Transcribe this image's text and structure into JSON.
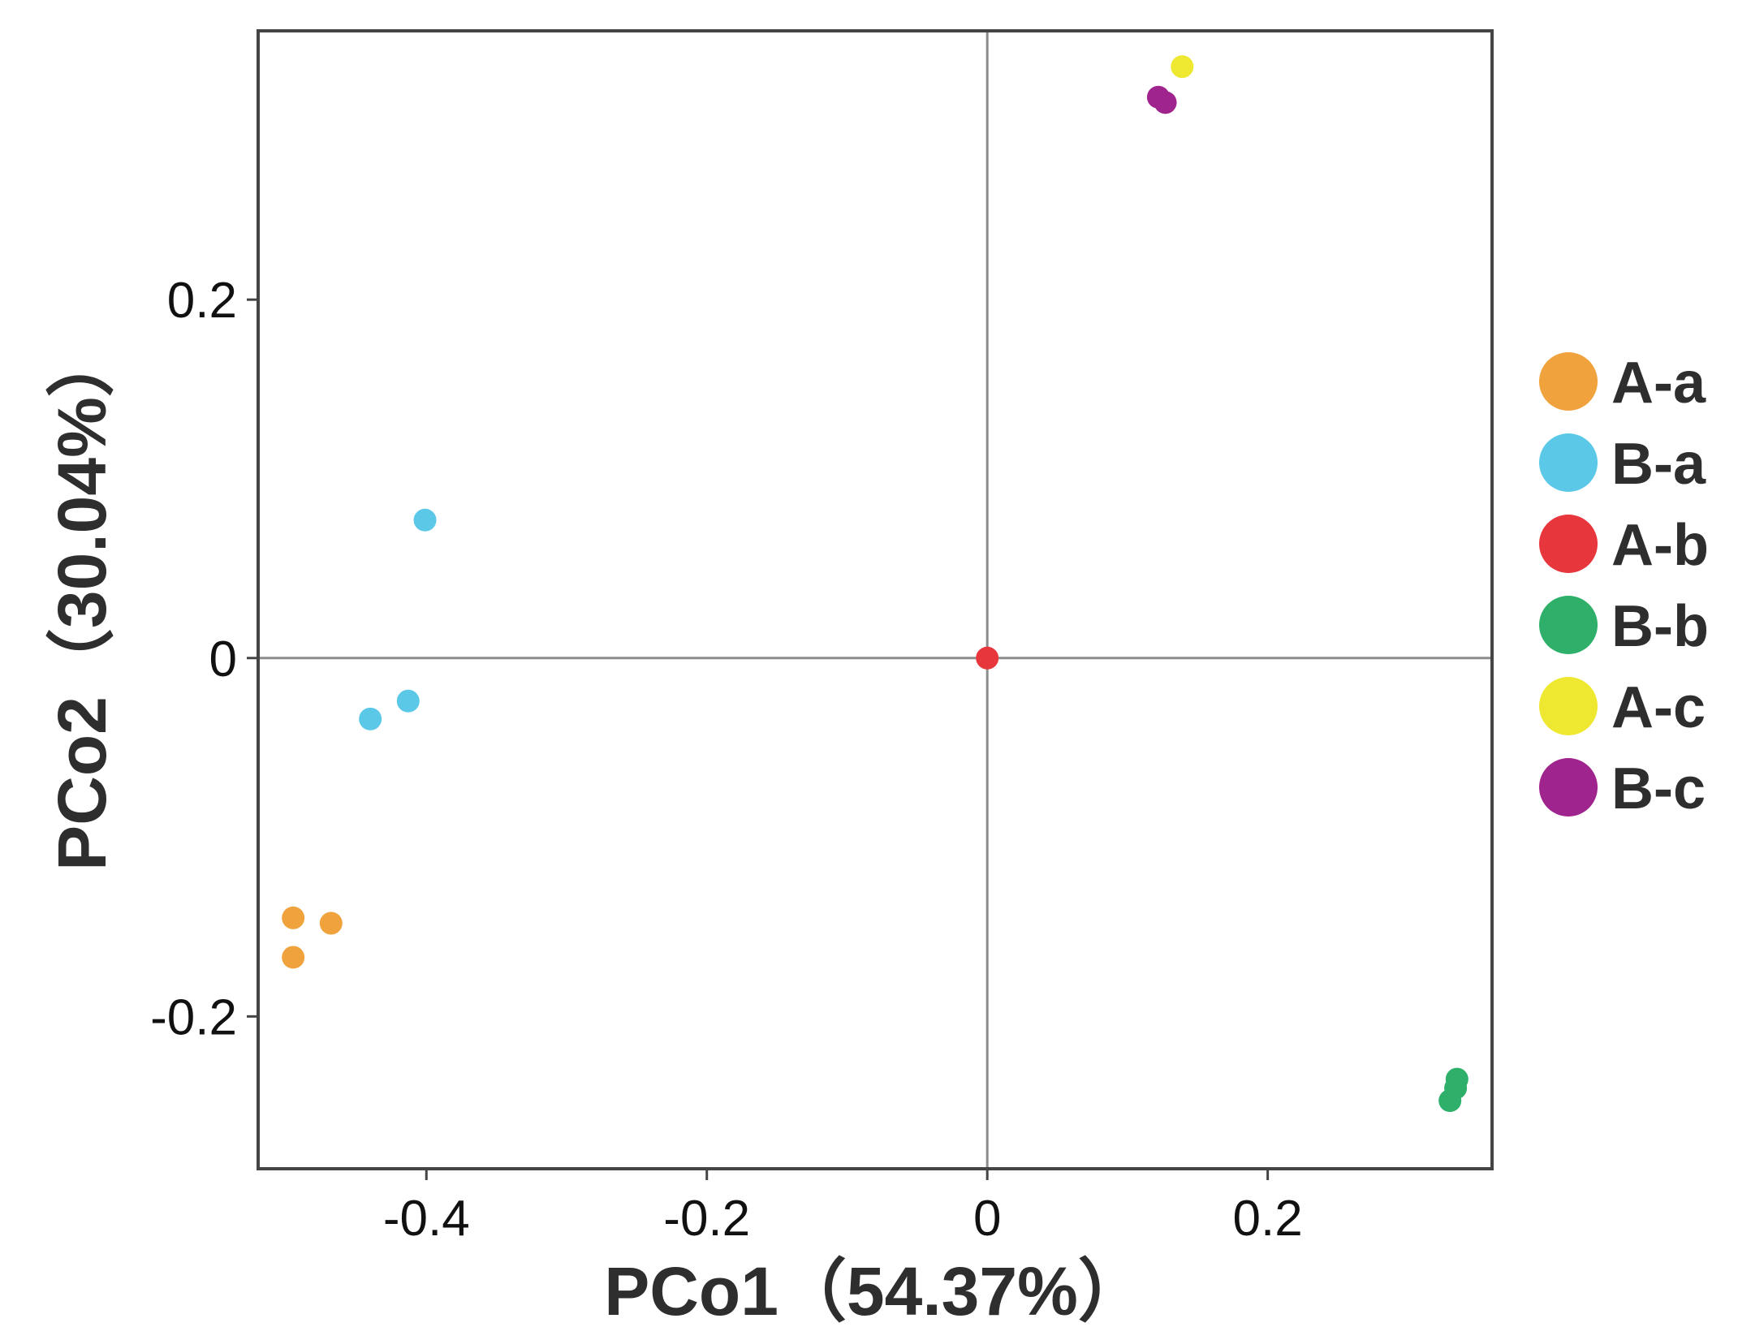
{
  "chart_data": {
    "type": "scatter",
    "xlabel": "PCo1（54.37%）",
    "ylabel": "PCo2（30.04%）",
    "xlim": [
      -0.52,
      0.36
    ],
    "ylim": [
      -0.285,
      0.35
    ],
    "x_ticks": [
      -0.4,
      -0.2,
      0,
      0.2
    ],
    "x_tick_labels": [
      "-0.4",
      "-0.2",
      "0",
      "0.2"
    ],
    "y_ticks": [
      -0.2,
      0,
      0.2
    ],
    "y_tick_labels": [
      "-0.2",
      "0",
      "0.2"
    ],
    "grid": false,
    "reference_lines": {
      "x": 0,
      "y": 0
    },
    "legend_position": "right",
    "series": [
      {
        "name": "A-a",
        "color": "#F0A23C",
        "points": [
          {
            "x": -0.495,
            "y": -0.145
          },
          {
            "x": -0.468,
            "y": -0.148
          },
          {
            "x": -0.495,
            "y": -0.167
          }
        ]
      },
      {
        "name": "B-a",
        "color": "#5BC8E8",
        "points": [
          {
            "x": -0.401,
            "y": 0.077
          },
          {
            "x": -0.413,
            "y": -0.024
          },
          {
            "x": -0.44,
            "y": -0.034
          }
        ]
      },
      {
        "name": "A-b",
        "color": "#E8363D",
        "points": [
          {
            "x": -0.0,
            "y": 0.0
          }
        ]
      },
      {
        "name": "B-b",
        "color": "#2EB06A",
        "points": [
          {
            "x": 0.335,
            "y": -0.235
          },
          {
            "x": 0.334,
            "y": -0.24
          },
          {
            "x": 0.33,
            "y": -0.247
          }
        ]
      },
      {
        "name": "A-c",
        "color": "#EEE830",
        "points": [
          {
            "x": 0.139,
            "y": 0.33
          }
        ]
      },
      {
        "name": "B-c",
        "color": "#A0248E",
        "points": [
          {
            "x": 0.122,
            "y": 0.313
          },
          {
            "x": 0.127,
            "y": 0.31
          }
        ]
      }
    ]
  }
}
